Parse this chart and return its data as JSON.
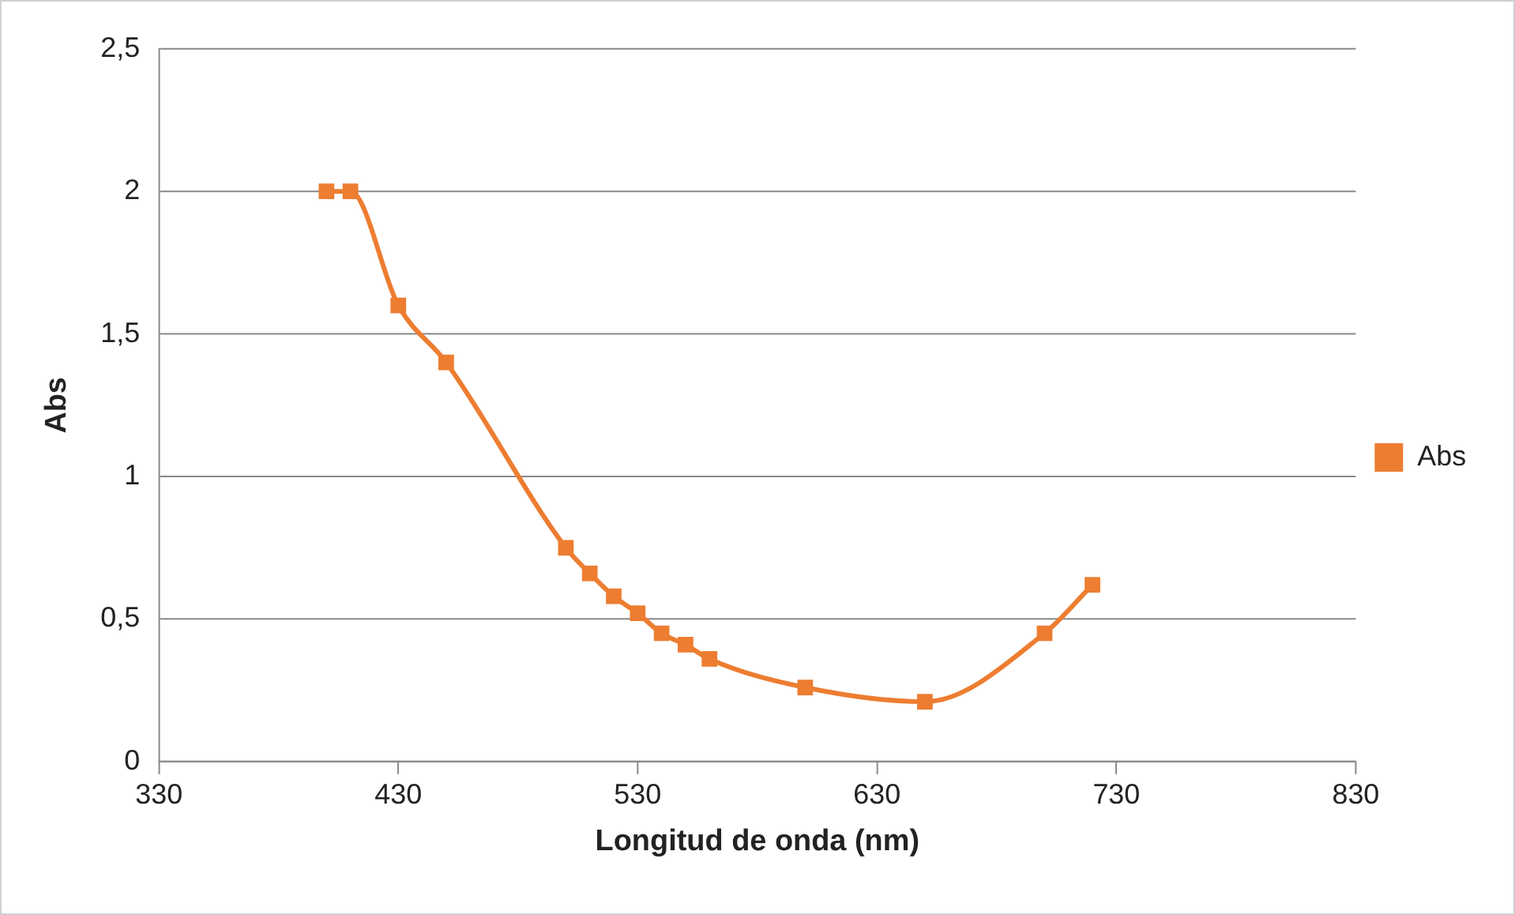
{
  "chart_data": {
    "type": "line",
    "xlabel": "Longitud de onda (nm)",
    "ylabel": "Abs",
    "x": [
      400,
      410,
      430,
      450,
      500,
      510,
      520,
      530,
      540,
      550,
      560,
      600,
      650,
      700,
      720
    ],
    "series": [
      {
        "name": "Abs",
        "color": "#ed7d31",
        "values": [
          2,
          2,
          1.6,
          1.4,
          0.75,
          0.66,
          0.58,
          0.52,
          0.45,
          0.41,
          0.36,
          0.26,
          0.21,
          0.45,
          0.62
        ]
      }
    ],
    "xlim": [
      330,
      830
    ],
    "xticks": [
      330,
      430,
      530,
      630,
      730,
      830
    ],
    "ylim": [
      0,
      2.5
    ],
    "yticks": [
      {
        "value": 0,
        "label": "0"
      },
      {
        "value": 0.5,
        "label": "0,5"
      },
      {
        "value": 1,
        "label": "1"
      },
      {
        "value": 1.5,
        "label": "1,5"
      },
      {
        "value": 2,
        "label": "2"
      },
      {
        "value": 2.5,
        "label": "2,5"
      }
    ],
    "grid": "y",
    "legend": "right",
    "marker": "square",
    "line_style": "solid"
  }
}
